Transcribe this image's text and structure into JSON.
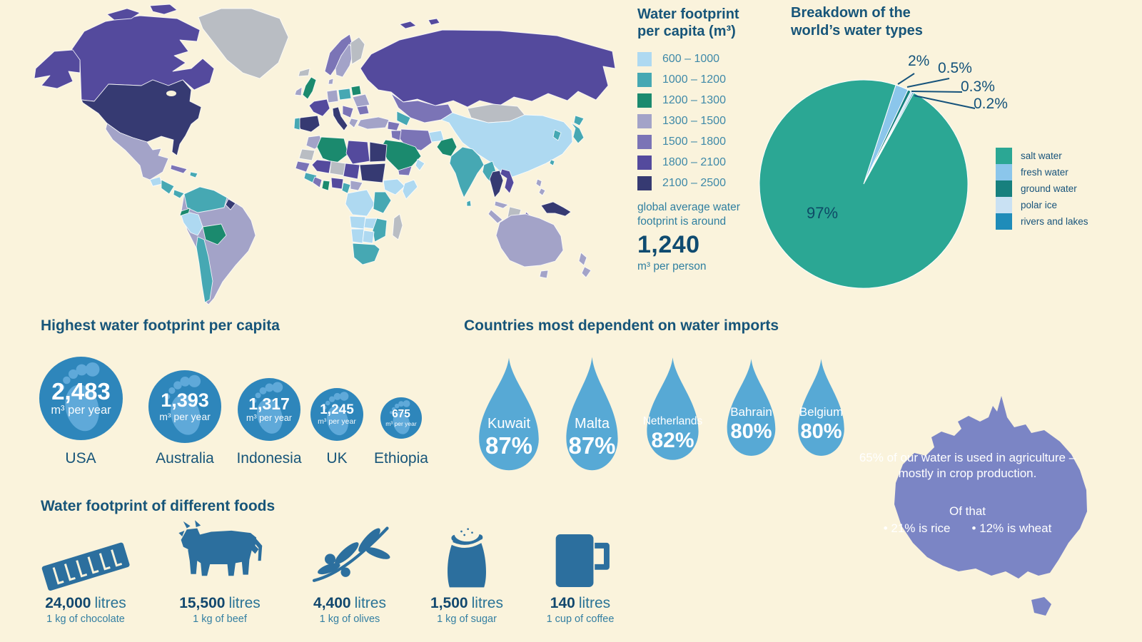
{
  "background": "#FAF3DC",
  "colors": {
    "heading_text": "#175579",
    "legend_label_text": "#3E89A8",
    "big_number_text": "#0F4B70",
    "footprint_circle": "#2E86BB",
    "footprint_foot": "#5FA9D9",
    "water_drop": "#57A9D5",
    "food_icon": "#2C6F9E",
    "australia_shape": "#7B85C5"
  },
  "chart_data": [
    {
      "type": "pie",
      "title": "Breakdown of the world’s water types",
      "labels": [
        "salt water",
        "fresh water",
        "ground water",
        "polar ice",
        "rivers and lakes"
      ],
      "values": [
        97,
        2,
        0.5,
        0.3,
        0.2
      ],
      "colors": [
        "#2BA794",
        "#8BC6EB",
        "#17807E",
        "#C9E1F3",
        "#1F8CB9"
      ],
      "annotations": [
        "97%",
        "2%",
        "0.5%",
        "0.3%",
        "0.2%"
      ],
      "legend_position": "right"
    },
    {
      "type": "heatmap",
      "subtype": "world-choropleth",
      "title": "Water footprint per capita (m³)",
      "legend_ranges": [
        "600 – 1000",
        "1000 – 1200",
        "1200 – 1300",
        "1300 – 1500",
        "1500 – 1800",
        "1800 – 2100",
        "2100 – 2500"
      ],
      "legend_colors": [
        "#AED9F1",
        "#46A8B3",
        "#1B8A6E",
        "#A3A3C8",
        "#7B74B6",
        "#544A9D",
        "#363A72"
      ],
      "no_data_color": "#B9BDC3",
      "note": "global average water footprint is around",
      "average_value": "1,240",
      "average_unit": "m³ per person"
    },
    {
      "type": "bar",
      "subtype": "footprint-circles",
      "title": "Highest water footprint per capita",
      "categories": [
        "USA",
        "Australia",
        "Indonesia",
        "UK",
        "Ethiopia"
      ],
      "values": [
        2483,
        1393,
        1317,
        1245,
        675
      ],
      "value_labels": [
        "2,483",
        "1,393",
        "1,317",
        "1,245",
        "675"
      ],
      "unit": "m³ per year"
    },
    {
      "type": "bar",
      "subtype": "water-drops",
      "title": "Countries most dependent on water imports",
      "categories": [
        "Kuwait",
        "Malta",
        "Netherlands",
        "Bahrain",
        "Belgium"
      ],
      "values": [
        87,
        87,
        82,
        80,
        80
      ],
      "value_labels": [
        "87%",
        "87%",
        "82%",
        "80%",
        "80%"
      ]
    },
    {
      "type": "bar",
      "subtype": "food-icons",
      "title": "Water footprint of different foods",
      "categories": [
        "1 kg of chocolate",
        "1 kg of beef",
        "1 kg of olives",
        "1 kg of sugar",
        "1 cup of coffee"
      ],
      "values": [
        24000,
        15500,
        4400,
        1500,
        140
      ],
      "value_labels": [
        "24,000",
        "15,500",
        "4,400",
        "1,500",
        "140"
      ],
      "unit": "litres"
    }
  ],
  "australia": {
    "fact": "65% of our water is used in agriculture – mostly in crop production.",
    "of_that": "Of that",
    "rice": "• 21% is rice",
    "wheat": "• 12% is wheat"
  }
}
